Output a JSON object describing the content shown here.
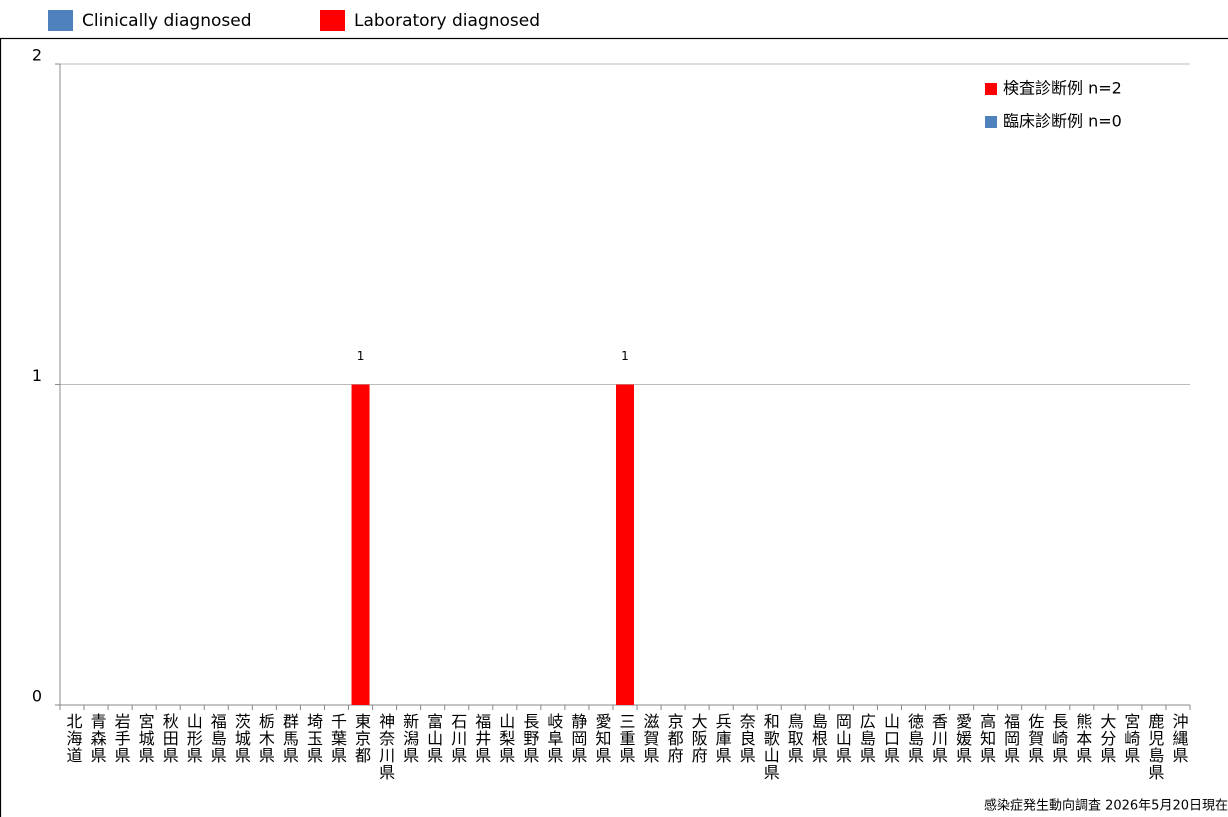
{
  "chart_data": {
    "type": "bar",
    "categories": [
      "北海道",
      "青森県",
      "岩手県",
      "宮城県",
      "秋田県",
      "山形県",
      "福島県",
      "茨城県",
      "栃木県",
      "群馬県",
      "埼玉県",
      "千葉県",
      "東京都",
      "神奈川県",
      "新潟県",
      "富山県",
      "石川県",
      "福井県",
      "山梨県",
      "長野県",
      "岐阜県",
      "静岡県",
      "愛知県",
      "三重県",
      "滋賀県",
      "京都府",
      "大阪府",
      "兵庫県",
      "奈良県",
      "和歌山県",
      "鳥取県",
      "島根県",
      "岡山県",
      "広島県",
      "山口県",
      "徳島県",
      "香川県",
      "愛媛県",
      "高知県",
      "福岡県",
      "佐賀県",
      "長崎県",
      "熊本県",
      "大分県",
      "宮崎県",
      "鹿児島県",
      "沖縄県"
    ],
    "series": [
      {
        "name": "Clinically diagnosed",
        "color": "#4f81bd",
        "values": [
          0,
          0,
          0,
          0,
          0,
          0,
          0,
          0,
          0,
          0,
          0,
          0,
          0,
          0,
          0,
          0,
          0,
          0,
          0,
          0,
          0,
          0,
          0,
          0,
          0,
          0,
          0,
          0,
          0,
          0,
          0,
          0,
          0,
          0,
          0,
          0,
          0,
          0,
          0,
          0,
          0,
          0,
          0,
          0,
          0,
          0,
          0
        ]
      },
      {
        "name": "Laboratory diagnosed",
        "color": "#ff0000",
        "values": [
          0,
          0,
          0,
          0,
          0,
          0,
          0,
          0,
          0,
          0,
          0,
          0,
          1,
          0,
          0,
          0,
          0,
          0,
          0,
          0,
          0,
          0,
          0,
          1,
          0,
          0,
          0,
          0,
          0,
          0,
          0,
          0,
          0,
          0,
          0,
          0,
          0,
          0,
          0,
          0,
          0,
          0,
          0,
          0,
          0,
          0,
          0
        ]
      }
    ],
    "inner_legend": [
      {
        "label": "検査診断例 n=2",
        "color": "#ff0000"
      },
      {
        "label": "臨床診断例 n=0",
        "color": "#4f81bd"
      }
    ],
    "ylim": [
      0,
      2
    ],
    "yticks": [
      0,
      1,
      2
    ],
    "grid": true,
    "footnote": "感染症発生動向調査 2026年5月20日現在"
  }
}
